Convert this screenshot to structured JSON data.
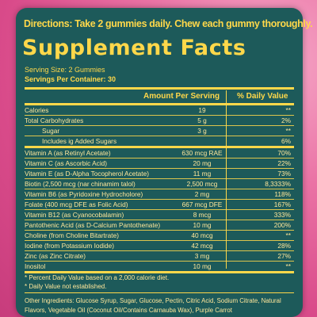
{
  "directions": "Directions: Take 2 gummies daily. Chew each gummy thoroughly.",
  "title": "Supplement Facts",
  "serving_size": "Serving Size: 2 Gummies",
  "servings_per_container": "Servings Per Container: 30",
  "headers": {
    "amount": "Amount Per Serving",
    "daily_value": "% Daily Value"
  },
  "rows": [
    {
      "name": "Calories",
      "amount": "19",
      "dv": "**"
    },
    {
      "name": "Total Carbohydrates",
      "amount": "5 g",
      "dv": "2%"
    },
    {
      "name": "Sugar",
      "amount": "3 g",
      "dv": "**"
    },
    {
      "name": "Includes ig Added Sugars",
      "amount": "",
      "dv": "6%"
    },
    {
      "name": "Vitamin A (as Retinyl Acetate)",
      "amount": "630 mcg RAE",
      "dv": "70%"
    },
    {
      "name": "Vitamin C (as Ascorbic Acid)",
      "amount": "20 mg",
      "dv": "22%"
    },
    {
      "name": "Vitamin E (as D-Alpha Tocopherol Acetate)",
      "amount": "11 mg",
      "dv": "73%"
    },
    {
      "name": "Biotin (2,500 mcg (nar chinamim talol)",
      "amount": "2,500 mcg",
      "dv": "8,3333%"
    },
    {
      "name": "Vitamin B6 (as Pyridoxine Hydrocholore)",
      "amount": "2 mg",
      "dv": "118%"
    },
    {
      "name": "Folate (400 mcg DFE as Folic Acid)",
      "amount": "667 mcg DFE",
      "dv": "167%"
    },
    {
      "name": "Vitamin B12 (as Cyanocobalamin)",
      "amount": "8 mcg",
      "dv": "333%"
    },
    {
      "name": "Pantothenic Acid (as D-Calcium Pantothenate)",
      "amount": "10 mg",
      "dv": "200%"
    },
    {
      "name": "Choline (from Choline Bitartrate)",
      "amount": "40 mcg",
      "dv": "**"
    },
    {
      "name": "Iodine (from Potassium Iodide)",
      "amount": "42 mcg",
      "dv": "28%"
    },
    {
      "name": "Zinc (as Zinc Citrate)",
      "amount": "3 mg",
      "dv": "27%"
    },
    {
      "name": "Inositol",
      "amount": "10 mg",
      "dv": "**"
    }
  ],
  "footnotes": [
    "* Percent Daily Value based on a 2,000 calorie diet.",
    "* Daily Value not established."
  ],
  "ingredients": "Other Ingredients: Glucose Syrup, Sugar, Glucose, Pectin, Citric Acid, Sodium Citrate, Natural Flavors, Vegetable Oil (Coconut Oil/Contains Carnauba Wax), Purple Carrot",
  "colors": {
    "panel": "#1d5a5a",
    "accent": "#ffd84a",
    "background": "#e8649a"
  }
}
